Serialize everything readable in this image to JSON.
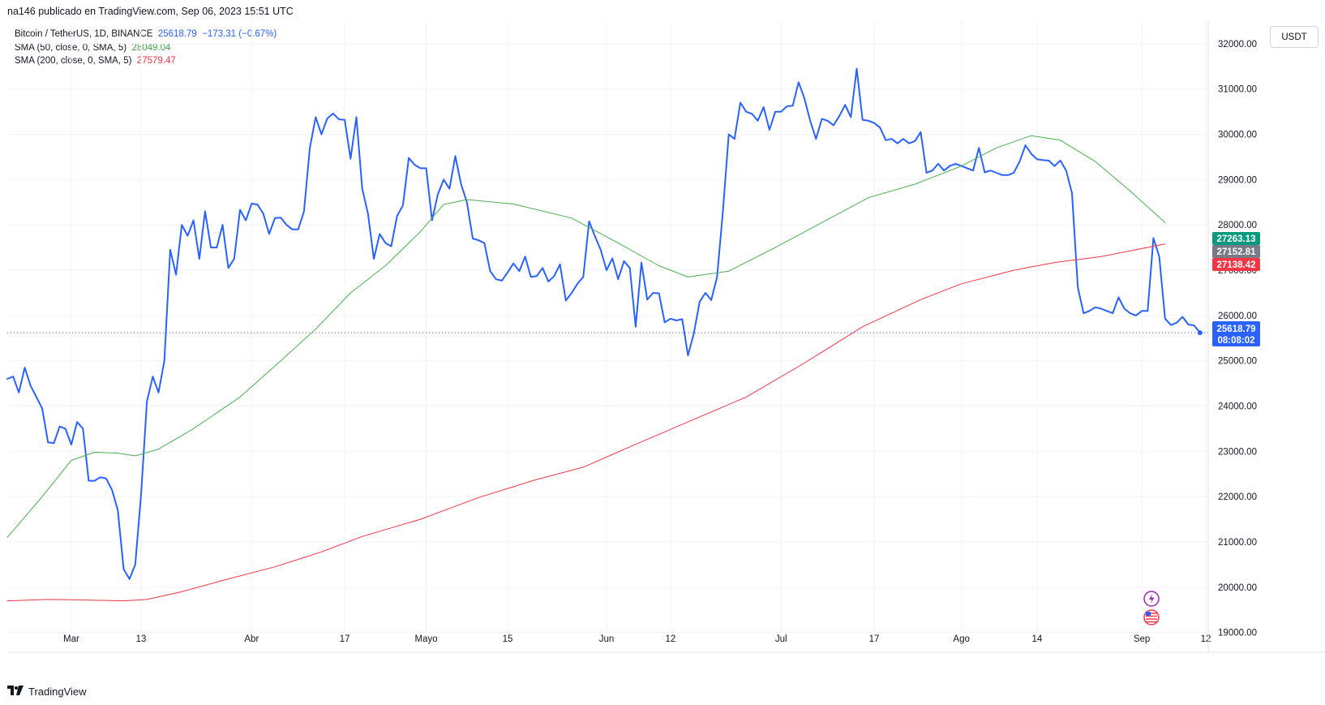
{
  "header": {
    "published": "na146 publicado en TradingView.com, Sep 06, 2023 15:51 UTC"
  },
  "legend": {
    "symbol": "Bitcoin / TetherUS, 1D, BINANCE",
    "last": "25618.79",
    "change": "−173.31 (−0.67%)",
    "sma50_label": "SMA (50, close, 0, SMA, 5)",
    "sma50_value": "28049.04",
    "sma200_label": "SMA (200, close, 0, SMA, 5)",
    "sma200_value": "27579.47"
  },
  "currency": "USDT",
  "footer": {
    "brand": "TradingView"
  },
  "price_tags": {
    "green": "27263.13",
    "gray": "27152.81",
    "red": "27138.42",
    "last_price": "25618.79",
    "countdown": "08:08:02"
  },
  "colors": {
    "price": "#2962ff",
    "sma50": "#4caf50",
    "sma200": "#f23645",
    "grid": "#f0f3fa",
    "tag_green": "#089981",
    "tag_gray": "#787b86",
    "tag_red": "#f23645",
    "tag_blue": "#2962ff"
  },
  "chart_data": {
    "type": "line",
    "ylim": [
      18600,
      32500
    ],
    "ytick_labels": [
      "32000.00",
      "31000.00",
      "30000.00",
      "29000.00",
      "28000.00",
      "27000.00",
      "26000.00",
      "25000.00",
      "24000.00",
      "23000.00",
      "22000.00",
      "21000.00",
      "20000.00",
      "19000.00"
    ],
    "ytick_values": [
      32000,
      31000,
      30000,
      29000,
      28000,
      27000,
      26000,
      25000,
      24000,
      23000,
      22000,
      21000,
      20000,
      19000
    ],
    "xtick_labels": [
      "Mar",
      "13",
      "Abr",
      "17",
      "Mayo",
      "15",
      "Jun",
      "12",
      "Jul",
      "17",
      "Ago",
      "14",
      "Sep",
      "12"
    ],
    "xtick_dates": [
      "2023-03-01",
      "2023-03-13",
      "2023-04-01",
      "2023-04-17",
      "2023-05-01",
      "2023-05-15",
      "2023-06-01",
      "2023-06-12",
      "2023-07-01",
      "2023-07-17",
      "2023-08-01",
      "2023-08-14",
      "2023-09-01",
      "2023-09-12"
    ],
    "x_range": [
      "2023-02-18",
      "2023-09-12"
    ],
    "series": [
      {
        "name": "Bitcoin / TetherUS",
        "x_start": "2023-02-18",
        "values": [
          24600,
          24650,
          24300,
          24850,
          24450,
          24200,
          23950,
          23200,
          23180,
          23550,
          23500,
          23150,
          23650,
          23500,
          22350,
          22350,
          22430,
          22400,
          22150,
          21700,
          20400,
          20180,
          20500,
          22050,
          24100,
          24650,
          24300,
          25000,
          27450,
          26900,
          28000,
          27760,
          28100,
          27250,
          28300,
          27500,
          27500,
          28000,
          27050,
          27250,
          28330,
          28100,
          28470,
          28450,
          28250,
          27800,
          28150,
          28160,
          28000,
          27900,
          27900,
          28300,
          29700,
          30380,
          30000,
          30350,
          30460,
          30330,
          30320,
          29460,
          30380,
          28800,
          28250,
          27250,
          27800,
          27600,
          27530,
          28200,
          28430,
          29480,
          29330,
          29250,
          29250,
          28100,
          28670,
          29000,
          28800,
          29520,
          28900,
          28500,
          27700,
          27660,
          27600,
          26980,
          26800,
          26770,
          26950,
          27150,
          26980,
          27300,
          26850,
          26870,
          27050,
          26750,
          26870,
          27130,
          26330,
          26500,
          26700,
          26850,
          28080,
          27750,
          27450,
          27000,
          27260,
          26800,
          27200,
          27050,
          25750,
          27170,
          26350,
          26500,
          26490,
          25850,
          25930,
          25890,
          25920,
          25120,
          25600,
          26300,
          26500,
          26340,
          26850,
          28300,
          30000,
          29900,
          30700,
          30500,
          30450,
          30300,
          30600,
          30100,
          30500,
          30500,
          30620,
          30630,
          31150,
          30800,
          30300,
          29900,
          30340,
          30300,
          30200,
          30400,
          30650,
          30380,
          31450,
          30320,
          30300,
          30250,
          30150,
          29870,
          29900,
          29800,
          29900,
          29800,
          29850,
          30050,
          29150,
          29200,
          29350,
          29200,
          29300,
          29350,
          29300,
          29250,
          29200,
          29700,
          29160,
          29200,
          29150,
          29100,
          29100,
          29150,
          29400,
          29760,
          29570,
          29450,
          29430,
          29420,
          29300,
          29420,
          29200,
          28700,
          26620,
          26050,
          26100,
          26180,
          26150,
          26100,
          26050,
          26400,
          26150,
          26050,
          26000,
          26100,
          26100,
          27710,
          27300,
          25930,
          25790,
          25840,
          25970,
          25800,
          25780,
          25620
        ]
      },
      {
        "name": "SMA (50, close, 0, SMA, 5)",
        "x": [
          "2023-02-18",
          "2023-02-24",
          "2023-03-01",
          "2023-03-05",
          "2023-03-09",
          "2023-03-12",
          "2023-03-16",
          "2023-03-22",
          "2023-03-30",
          "2023-04-06",
          "2023-04-12",
          "2023-04-18",
          "2023-04-24",
          "2023-04-30",
          "2023-05-04",
          "2023-05-08",
          "2023-05-16",
          "2023-05-26",
          "2023-06-03",
          "2023-06-10",
          "2023-06-15",
          "2023-06-22",
          "2023-06-30",
          "2023-07-08",
          "2023-07-16",
          "2023-07-24",
          "2023-08-01",
          "2023-08-07",
          "2023-08-13",
          "2023-08-18",
          "2023-08-24",
          "2023-08-30",
          "2023-09-05"
        ],
        "values": [
          21100,
          22000,
          22800,
          22980,
          22960,
          22900,
          23050,
          23500,
          24200,
          25000,
          25700,
          26500,
          27100,
          27850,
          28450,
          28560,
          28460,
          28150,
          27600,
          27100,
          26850,
          26980,
          27500,
          28050,
          28600,
          28900,
          29300,
          29700,
          29970,
          29870,
          29400,
          28750,
          28050
        ]
      },
      {
        "name": "SMA (200, close, 0, SMA, 5)",
        "x": [
          "2023-02-18",
          "2023-02-25",
          "2023-03-03",
          "2023-03-10",
          "2023-03-14",
          "2023-03-20",
          "2023-03-27",
          "2023-04-05",
          "2023-04-13",
          "2023-04-20",
          "2023-04-30",
          "2023-05-10",
          "2023-05-20",
          "2023-05-28",
          "2023-06-05",
          "2023-06-15",
          "2023-06-25",
          "2023-07-05",
          "2023-07-15",
          "2023-07-25",
          "2023-08-01",
          "2023-08-10",
          "2023-08-17",
          "2023-08-25",
          "2023-09-05"
        ],
        "values": [
          19700,
          19730,
          19720,
          19700,
          19730,
          19900,
          20150,
          20450,
          20780,
          21120,
          21500,
          21980,
          22380,
          22650,
          23100,
          23650,
          24200,
          24950,
          25750,
          26350,
          26700,
          27000,
          27170,
          27300,
          27580
        ]
      }
    ]
  }
}
